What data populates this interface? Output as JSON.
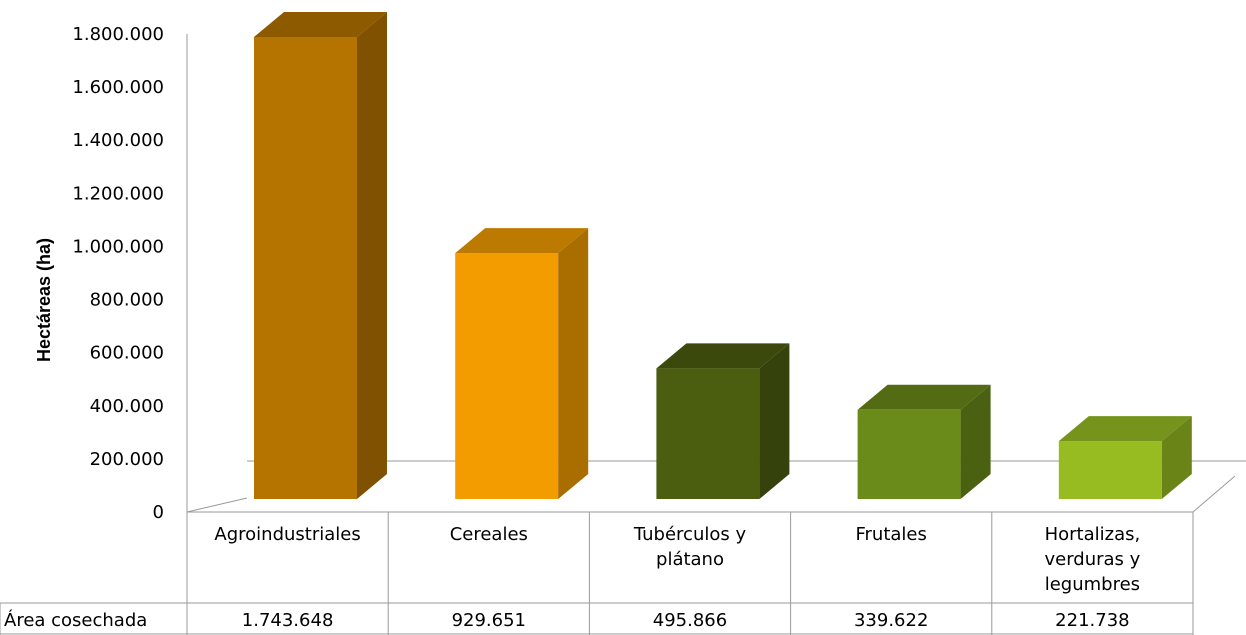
{
  "chart_data": {
    "type": "bar",
    "ylabel": "Hectáreas (ha)",
    "xlabel": "",
    "ylim": [
      0,
      1800000
    ],
    "y_ticks": [
      "0",
      "200.000",
      "400.000",
      "600.000",
      "800.000",
      "1.000.000",
      "1.200.000",
      "1.400.000",
      "1.600.000",
      "1.800.000"
    ],
    "categories": [
      [
        "Agroindustriales"
      ],
      [
        "Cereales"
      ],
      [
        "Tubérculos y",
        "plátano"
      ],
      [
        "Frutales"
      ],
      [
        "Hortalizas,",
        "verduras y",
        "legumbres"
      ]
    ],
    "series": [
      {
        "name": "Área cosechada",
        "values": [
          1743648,
          929651,
          495866,
          339622,
          221738
        ],
        "value_labels": [
          "1.743.648",
          "929.651",
          "495.866",
          "339.622",
          "221.738"
        ]
      }
    ],
    "bar_colors": [
      "#B57300",
      "#F29C00",
      "#4B5E10",
      "#6A8A1A",
      "#97BC22"
    ],
    "grid": false,
    "legend": "data-table",
    "style": "3d-column"
  }
}
